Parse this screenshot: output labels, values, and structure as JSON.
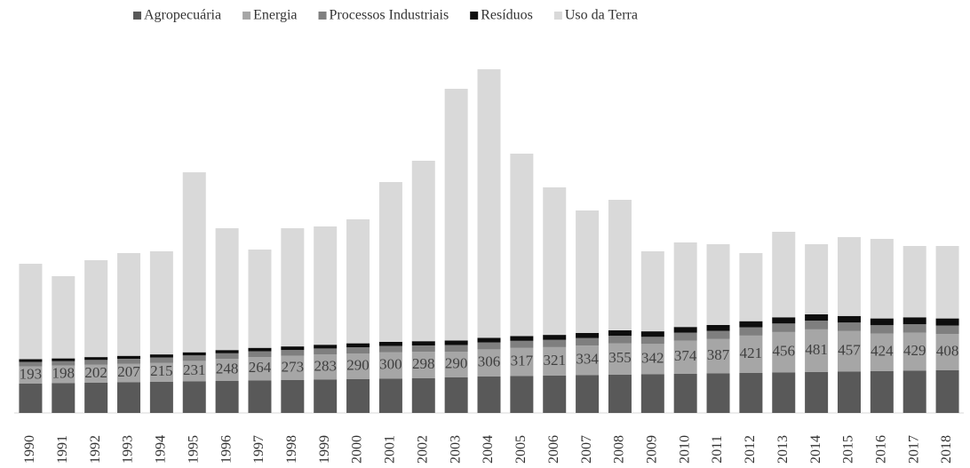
{
  "chart_data": {
    "type": "stacked_bar",
    "categories": [
      "1990",
      "1991",
      "1992",
      "1993",
      "1994",
      "1995",
      "1996",
      "1997",
      "1998",
      "1999",
      "2000",
      "2001",
      "2002",
      "2003",
      "2004",
      "2005",
      "2006",
      "2007",
      "2008",
      "2009",
      "2010",
      "2011",
      "2012",
      "2013",
      "2014",
      "2015",
      "2016",
      "2017",
      "2018"
    ],
    "series": [
      {
        "name": "Agropecuária",
        "color": "#595959",
        "values": [
          330,
          335,
          340,
          345,
          350,
          355,
          360,
          365,
          370,
          375,
          380,
          385,
          390,
          400,
          410,
          415,
          420,
          425,
          430,
          435,
          440,
          445,
          450,
          455,
          460,
          465,
          470,
          475,
          480
        ]
      },
      {
        "name": "Energia",
        "color": "#a6a6a6",
        "values": [
          193,
          198,
          202,
          207,
          215,
          231,
          248,
          264,
          273,
          283,
          290,
          300,
          298,
          290,
          306,
          317,
          321,
          334,
          355,
          342,
          374,
          387,
          421,
          456,
          481,
          457,
          424,
          429,
          408
        ]
      },
      {
        "name": "Processos Industriais",
        "color": "#7f7f7f",
        "values": [
          52,
          50,
          55,
          58,
          60,
          62,
          64,
          66,
          66,
          68,
          70,
          70,
          72,
          75,
          78,
          80,
          82,
          84,
          85,
          80,
          90,
          92,
          94,
          96,
          98,
          96,
          94,
          95,
          96
        ]
      },
      {
        "name": "Resíduos",
        "color": "#0d0d0d",
        "values": [
          30,
          31,
          32,
          33,
          34,
          35,
          36,
          38,
          40,
          42,
          44,
          46,
          48,
          50,
          52,
          54,
          56,
          58,
          60,
          62,
          64,
          66,
          68,
          70,
          72,
          74,
          76,
          78,
          80
        ]
      },
      {
        "name": "Uso da Terra",
        "color": "#d9d9d9",
        "values": [
          1075,
          926,
          1091,
          1157,
          1161,
          2027,
          1372,
          1107,
          1331,
          1332,
          1396,
          1799,
          2032,
          2835,
          3024,
          2054,
          1661,
          1379,
          1470,
          901,
          952,
          910,
          767,
          963,
          789,
          888,
          896,
          803,
          816
        ]
      }
    ],
    "data_labels_series": 1,
    "legend": "top"
  }
}
